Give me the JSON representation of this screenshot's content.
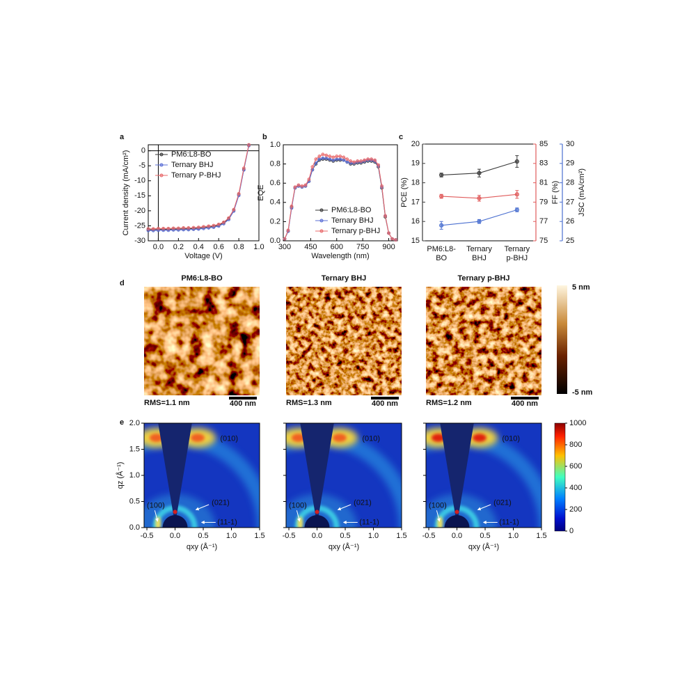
{
  "chart_data": [
    {
      "type": "line",
      "label": "a",
      "xlabel": "Voltage (V)",
      "ylabel": "Current density (mA/cm²)",
      "x": [
        -0.1,
        -0.05,
        0,
        0.05,
        0.1,
        0.15,
        0.2,
        0.25,
        0.3,
        0.35,
        0.4,
        0.45,
        0.5,
        0.55,
        0.6,
        0.65,
        0.7,
        0.75,
        0.8,
        0.85,
        0.9
      ],
      "series": [
        {
          "name": "PM6:L8-BO",
          "color": "#3a3a3a",
          "values": [
            -26.3,
            -26.3,
            -26.2,
            -26.2,
            -26.2,
            -26.1,
            -26.1,
            -26.0,
            -26.0,
            -25.9,
            -25.8,
            -25.6,
            -25.4,
            -25.2,
            -24.8,
            -24.0,
            -22.6,
            -19.8,
            -14.6,
            -6.2,
            1.8
          ]
        },
        {
          "name": "Ternary BHJ",
          "color": "#5b6fd6",
          "values": [
            -26.6,
            -26.6,
            -26.5,
            -26.5,
            -26.5,
            -26.4,
            -26.4,
            -26.3,
            -26.3,
            -26.2,
            -26.1,
            -25.9,
            -25.7,
            -25.5,
            -25.1,
            -24.3,
            -22.9,
            -20.1,
            -14.9,
            -6.4,
            1.7
          ]
        },
        {
          "name": "Ternary P-BHJ",
          "color": "#e8686a",
          "values": [
            -26.0,
            -26.0,
            -25.9,
            -25.9,
            -25.9,
            -25.8,
            -25.8,
            -25.7,
            -25.7,
            -25.6,
            -25.5,
            -25.3,
            -25.1,
            -24.9,
            -24.5,
            -23.8,
            -22.4,
            -19.6,
            -14.3,
            -5.8,
            2.0
          ]
        }
      ],
      "xlim": [
        -0.1,
        1.0
      ],
      "xticks": [
        {
          "value": 0,
          "label": "0.0"
        },
        0.2,
        0.4,
        0.6,
        0.8,
        {
          "value": 1,
          "label": "1.0"
        }
      ],
      "ylim": [
        -30,
        2
      ],
      "yticks": [
        0,
        -5,
        -10,
        -15,
        -20,
        -25,
        -30
      ],
      "zero_lines": true,
      "legend": "upper left"
    },
    {
      "type": "line",
      "label": "b",
      "xlabel": "Wavelength (nm)",
      "ylabel": "EQE",
      "x": [
        300,
        320,
        340,
        360,
        380,
        400,
        420,
        440,
        460,
        480,
        500,
        520,
        540,
        560,
        580,
        600,
        620,
        640,
        660,
        680,
        700,
        720,
        740,
        760,
        780,
        800,
        820,
        840,
        860,
        880,
        900,
        920,
        940
      ],
      "series": [
        {
          "name": "PM6:L8-BO",
          "color": "#3a3a3a",
          "values": [
            0.02,
            0.1,
            0.35,
            0.55,
            0.57,
            0.56,
            0.57,
            0.62,
            0.74,
            0.8,
            0.84,
            0.85,
            0.85,
            0.84,
            0.83,
            0.84,
            0.84,
            0.84,
            0.82,
            0.8,
            0.8,
            0.81,
            0.81,
            0.82,
            0.83,
            0.83,
            0.82,
            0.77,
            0.55,
            0.25,
            0.08,
            0.02,
            0.01
          ]
        },
        {
          "name": "Ternary BHJ",
          "color": "#5b6fd6",
          "values": [
            0.02,
            0.1,
            0.34,
            0.55,
            0.57,
            0.56,
            0.57,
            0.62,
            0.74,
            0.81,
            0.85,
            0.86,
            0.86,
            0.85,
            0.84,
            0.85,
            0.85,
            0.84,
            0.82,
            0.81,
            0.81,
            0.82,
            0.82,
            0.83,
            0.84,
            0.84,
            0.83,
            0.78,
            0.56,
            0.26,
            0.08,
            0.02,
            0.01
          ]
        },
        {
          "name": "Ternary p-BHJ",
          "color": "#e8686a",
          "values": [
            0.02,
            0.11,
            0.36,
            0.56,
            0.58,
            0.57,
            0.58,
            0.64,
            0.77,
            0.85,
            0.88,
            0.9,
            0.89,
            0.88,
            0.87,
            0.88,
            0.88,
            0.87,
            0.85,
            0.83,
            0.82,
            0.83,
            0.83,
            0.84,
            0.85,
            0.85,
            0.84,
            0.79,
            0.57,
            0.26,
            0.08,
            0.02,
            0.01
          ]
        }
      ],
      "xlim": [
        292,
        950
      ],
      "xticks": [
        300,
        450,
        600,
        750,
        900
      ],
      "ylim": [
        0,
        1.0
      ],
      "yticks": [
        {
          "value": 0,
          "label": "0.0"
        },
        0.2,
        0.4,
        0.6,
        0.8,
        {
          "value": 1,
          "label": "1.0"
        }
      ],
      "legend": "lower right"
    },
    {
      "type": "errorbar",
      "label": "c",
      "categories": [
        "PM6:L8-BO",
        "Ternary BHJ",
        "Ternary p-BHJ"
      ],
      "series": [
        {
          "name": "PCE",
          "color": "#3a3a3a",
          "axis": "y",
          "values": [
            18.4,
            18.5,
            19.1
          ],
          "errors": [
            0.1,
            0.2,
            0.3
          ]
        },
        {
          "name": "FF",
          "color": "#e05a5a",
          "axis": "y2",
          "values": [
            79.6,
            79.4,
            79.8
          ],
          "errors": [
            0.2,
            0.3,
            0.4
          ]
        },
        {
          "name": "JSC",
          "color": "#4a6fd0",
          "axis": "y3",
          "values": [
            25.8,
            26.0,
            26.6
          ],
          "errors": [
            0.2,
            0.1,
            0.1
          ]
        }
      ],
      "ylim": [
        15,
        20
      ],
      "yticks": [
        15,
        16,
        17,
        18,
        19,
        20
      ],
      "ylabel": "PCE (%)",
      "y2lim": [
        75,
        85
      ],
      "y2ticks": [
        75,
        77,
        79,
        81,
        83,
        85
      ],
      "y2label": "FF (%)",
      "y3lim": [
        25,
        30
      ],
      "y3ticks": [
        25,
        26,
        27,
        28,
        29,
        30
      ],
      "y3label": "JSC (mA/cm²)"
    }
  ],
  "afm": {
    "label": "d",
    "panels": [
      {
        "title": "PM6:L8-BO",
        "rms": "RMS=1.1 nm"
      },
      {
        "title": "Ternary BHJ",
        "rms": "RMS=1.3 nm"
      },
      {
        "title": "Ternary p-BHJ",
        "rms": "RMS=1.2 nm"
      }
    ],
    "scale_bar": "400 nm",
    "colorbar": {
      "top": "5 nm",
      "bottom": "-5 nm"
    }
  },
  "giwaxs": {
    "label": "e",
    "xlim": [
      -0.55,
      1.5
    ],
    "xticks": [
      -0.5,
      {
        "value": 0,
        "label": "0.0"
      },
      0.5,
      {
        "value": 1,
        "label": "1.0"
      },
      1.5
    ],
    "ylim": [
      0,
      2.0
    ],
    "yticks": [
      {
        "value": 0,
        "label": "0.0"
      },
      0.5,
      {
        "value": 1,
        "label": "1.0"
      },
      1.5,
      {
        "value": 2,
        "label": "2.0"
      }
    ],
    "xlabel": "qxy (Å⁻¹)",
    "ylabel": "qz (Å⁻¹)",
    "peaks": [
      "(010)",
      "(100)",
      "(021)",
      "(11-1)"
    ],
    "colorbar": {
      "lim": [
        0,
        1000
      ],
      "ticks": [
        0,
        200,
        400,
        600,
        800,
        1000
      ]
    }
  }
}
